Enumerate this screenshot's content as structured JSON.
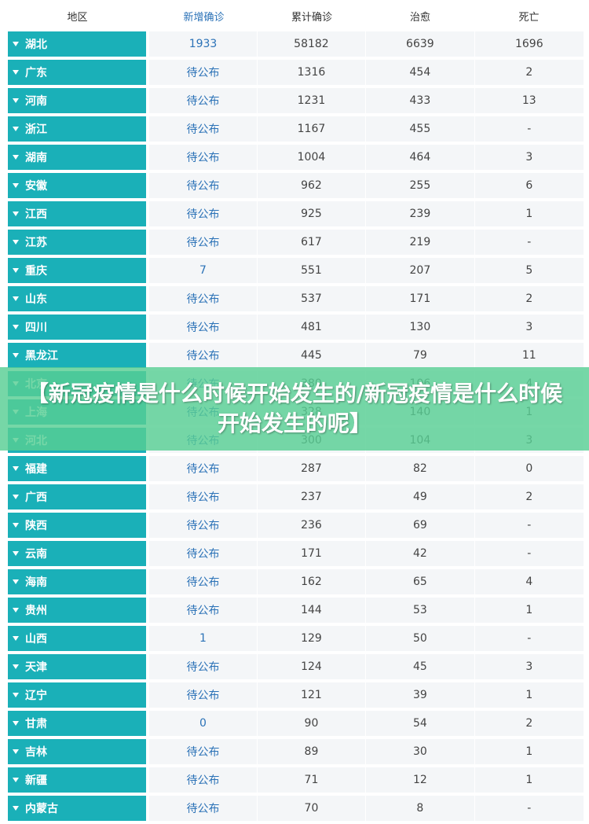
{
  "colors": {
    "region_bg": "#1ab0b8",
    "cell_bg": "#f4f6f8",
    "new_text": "#2b72b7",
    "banner_bg": "#58ce94"
  },
  "header": {
    "region": "地区",
    "new_confirmed": "新增确诊",
    "total_confirmed": "累计确诊",
    "cured": "治愈",
    "deaths": "死亡"
  },
  "rows": [
    {
      "region": "湖北",
      "new": "1933",
      "total": "58182",
      "cured": "6639",
      "deaths": "1696"
    },
    {
      "region": "广东",
      "new": "待公布",
      "total": "1316",
      "cured": "454",
      "deaths": "2"
    },
    {
      "region": "河南",
      "new": "待公布",
      "total": "1231",
      "cured": "433",
      "deaths": "13"
    },
    {
      "region": "浙江",
      "new": "待公布",
      "total": "1167",
      "cured": "455",
      "deaths": "-"
    },
    {
      "region": "湖南",
      "new": "待公布",
      "total": "1004",
      "cured": "464",
      "deaths": "3"
    },
    {
      "region": "安徽",
      "new": "待公布",
      "total": "962",
      "cured": "255",
      "deaths": "6"
    },
    {
      "region": "江西",
      "new": "待公布",
      "total": "925",
      "cured": "239",
      "deaths": "1"
    },
    {
      "region": "江苏",
      "new": "待公布",
      "total": "617",
      "cured": "219",
      "deaths": "-"
    },
    {
      "region": "重庆",
      "new": "7",
      "total": "551",
      "cured": "207",
      "deaths": "5"
    },
    {
      "region": "山东",
      "new": "待公布",
      "total": "537",
      "cured": "171",
      "deaths": "2"
    },
    {
      "region": "四川",
      "new": "待公布",
      "total": "481",
      "cured": "130",
      "deaths": "3"
    },
    {
      "region": "黑龙江",
      "new": "待公布",
      "total": "445",
      "cured": "79",
      "deaths": "11"
    },
    {
      "region": "北京",
      "new": "待公布",
      "total": "380",
      "cured": "106",
      "deaths": "4"
    },
    {
      "region": "上海",
      "new": "待公布",
      "total": "328",
      "cured": "140",
      "deaths": "1"
    },
    {
      "region": "河北",
      "new": "待公布",
      "total": "300",
      "cured": "104",
      "deaths": "3"
    },
    {
      "region": "福建",
      "new": "待公布",
      "total": "287",
      "cured": "82",
      "deaths": "0"
    },
    {
      "region": "广西",
      "new": "待公布",
      "total": "237",
      "cured": "49",
      "deaths": "2"
    },
    {
      "region": "陕西",
      "new": "待公布",
      "total": "236",
      "cured": "69",
      "deaths": "-"
    },
    {
      "region": "云南",
      "new": "待公布",
      "total": "171",
      "cured": "42",
      "deaths": "-"
    },
    {
      "region": "海南",
      "new": "待公布",
      "total": "162",
      "cured": "65",
      "deaths": "4"
    },
    {
      "region": "贵州",
      "new": "待公布",
      "total": "144",
      "cured": "53",
      "deaths": "1"
    },
    {
      "region": "山西",
      "new": "1",
      "total": "129",
      "cured": "50",
      "deaths": "-"
    },
    {
      "region": "天津",
      "new": "待公布",
      "total": "124",
      "cured": "45",
      "deaths": "3"
    },
    {
      "region": "辽宁",
      "new": "待公布",
      "total": "121",
      "cured": "39",
      "deaths": "1"
    },
    {
      "region": "甘肃",
      "new": "0",
      "total": "90",
      "cured": "54",
      "deaths": "2"
    },
    {
      "region": "吉林",
      "new": "待公布",
      "total": "89",
      "cured": "30",
      "deaths": "1"
    },
    {
      "region": "新疆",
      "new": "待公布",
      "total": "71",
      "cured": "12",
      "deaths": "1"
    },
    {
      "region": "内蒙古",
      "new": "待公布",
      "total": "70",
      "cured": "8",
      "deaths": "-"
    }
  ],
  "banner": {
    "text": "【新冠疫情是什么时候开始发生的/新冠疫情是什么时候开始发生的呢】"
  }
}
